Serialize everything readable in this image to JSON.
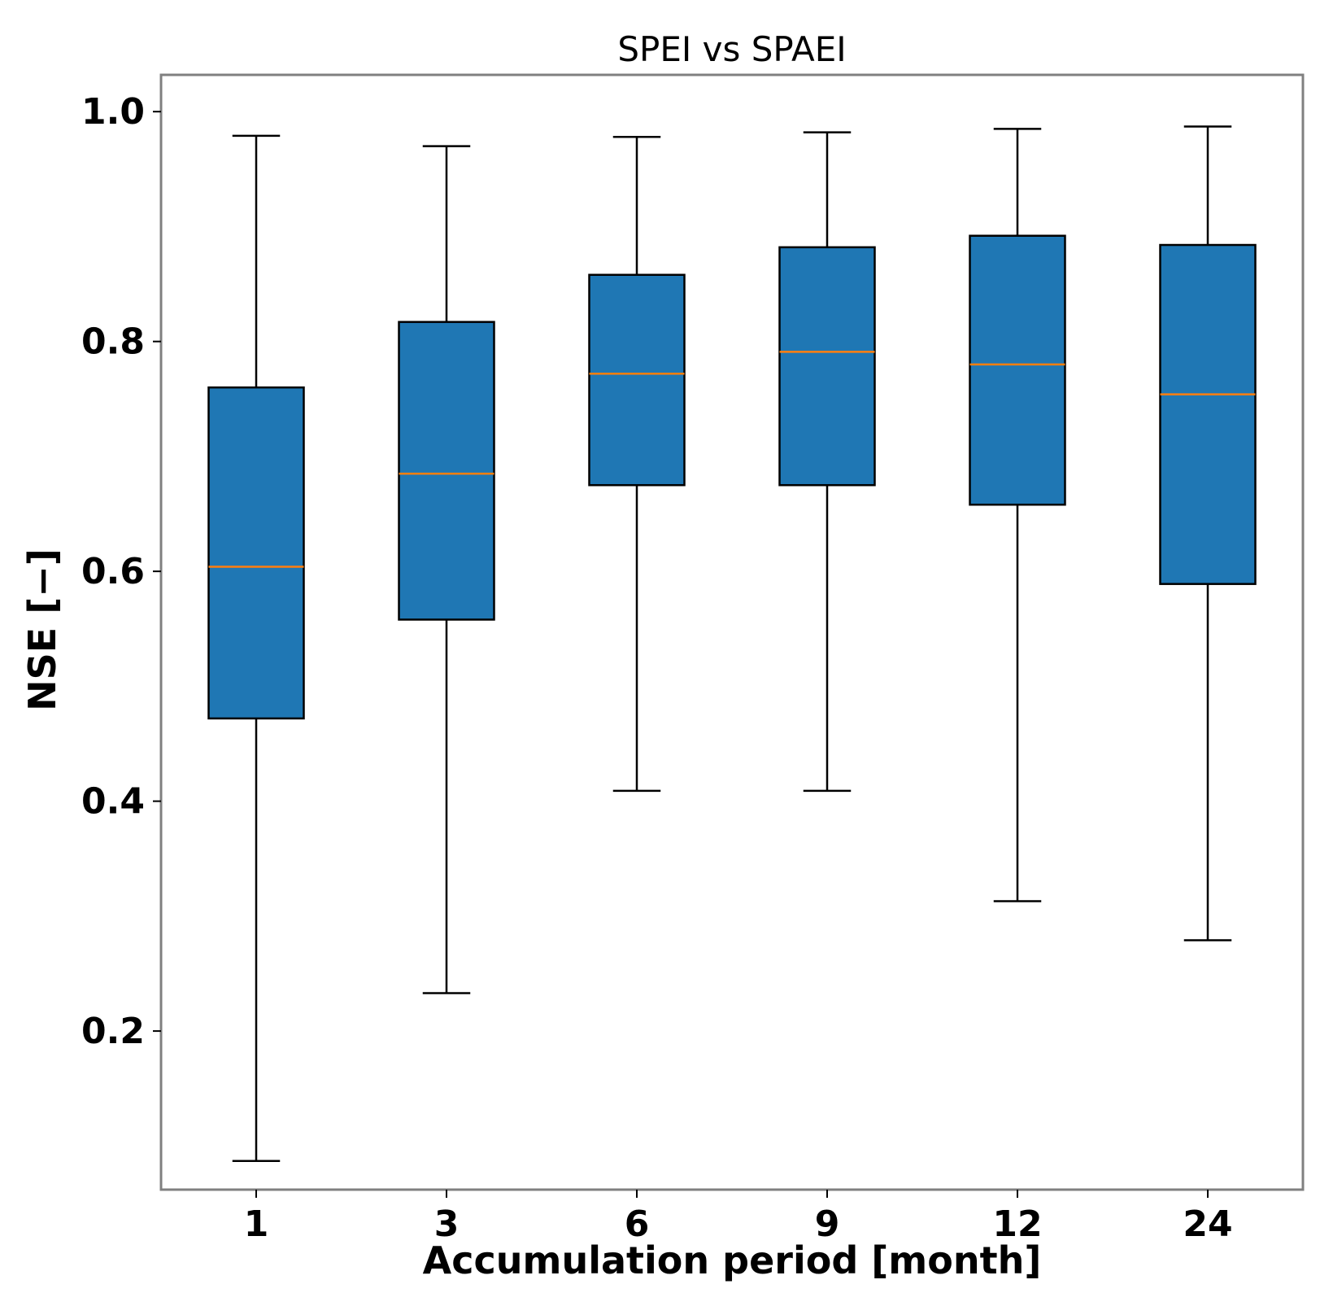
{
  "chart_data": {
    "type": "box",
    "title": "SPEI vs SPAEI",
    "xlabel": "Accumulation period [month]",
    "ylabel": "NSE [−]",
    "categories": [
      "1",
      "3",
      "6",
      "9",
      "12",
      "24"
    ],
    "boxes": [
      {
        "category": "1",
        "whisker_low": 0.087,
        "q1": 0.472,
        "median": 0.604,
        "q3": 0.76,
        "whisker_high": 0.979
      },
      {
        "category": "3",
        "whisker_low": 0.233,
        "q1": 0.558,
        "median": 0.685,
        "q3": 0.817,
        "whisker_high": 0.97
      },
      {
        "category": "6",
        "whisker_low": 0.409,
        "q1": 0.675,
        "median": 0.772,
        "q3": 0.858,
        "whisker_high": 0.978
      },
      {
        "category": "9",
        "whisker_low": 0.409,
        "q1": 0.675,
        "median": 0.791,
        "q3": 0.882,
        "whisker_high": 0.982
      },
      {
        "category": "12",
        "whisker_low": 0.313,
        "q1": 0.658,
        "median": 0.78,
        "q3": 0.892,
        "whisker_high": 0.985
      },
      {
        "category": "24",
        "whisker_low": 0.279,
        "q1": 0.589,
        "median": 0.754,
        "q3": 0.884,
        "whisker_high": 0.987
      }
    ],
    "yticks": [
      "0.2",
      "0.4",
      "0.6",
      "0.8",
      "1.0"
    ],
    "ylim": [
      0.062,
      1.032
    ],
    "grid": false,
    "colors": {
      "box_fill": "#1f77b4",
      "median": "#ff7f0e",
      "whisker": "#000000",
      "frame": "#808080"
    }
  }
}
